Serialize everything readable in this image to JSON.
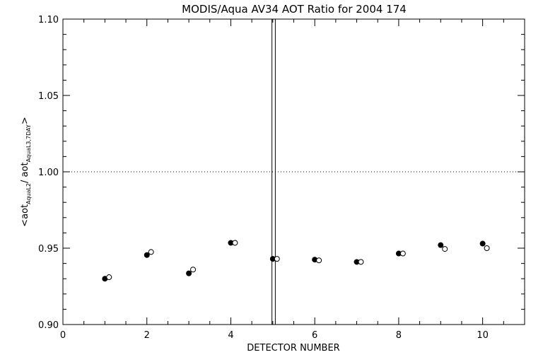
{
  "chart_data": {
    "type": "scatter",
    "title": "MODIS/Aqua AV34 AOT Ratio for 2004 174",
    "xlabel": "DETECTOR NUMBER",
    "ylabel": {
      "prefix": "<aot",
      "sub1": "AquaL2",
      "mid": "/ aot",
      "sub2": "AquaL3,7DAY",
      "suffix": ">"
    },
    "xlim": [
      0,
      11
    ],
    "ylim": [
      0.9,
      1.1
    ],
    "x_ticks": [
      0,
      2,
      4,
      6,
      8,
      10
    ],
    "x_tick_labels": [
      "0",
      "2",
      "4",
      "6",
      "8",
      "10"
    ],
    "y_ticks": [
      0.9,
      0.95,
      1.0,
      1.05,
      1.1
    ],
    "y_tick_labels": [
      "0.90",
      "0.95",
      "1.00",
      "1.05",
      "1.10"
    ],
    "reference_line": {
      "y": 1.0,
      "style": "dotted"
    },
    "vertical_lines": [
      4.98,
      5.06
    ],
    "series": [
      {
        "marker": "filled-circle",
        "x": [
          1,
          2,
          3,
          4,
          5,
          6,
          7,
          8,
          9,
          10
        ],
        "y": [
          0.93,
          0.9455,
          0.9335,
          0.9535,
          0.943,
          0.9425,
          0.941,
          0.9465,
          0.952,
          0.953
        ]
      },
      {
        "marker": "open-circle",
        "x": [
          1.1,
          2.1,
          3.1,
          4.1,
          5.1,
          6.1,
          7.1,
          8.1,
          9.1,
          10.1
        ],
        "y": [
          0.931,
          0.9475,
          0.936,
          0.9535,
          0.943,
          0.942,
          0.941,
          0.9465,
          0.9495,
          0.95
        ]
      }
    ],
    "grid": false,
    "legend": "none"
  }
}
